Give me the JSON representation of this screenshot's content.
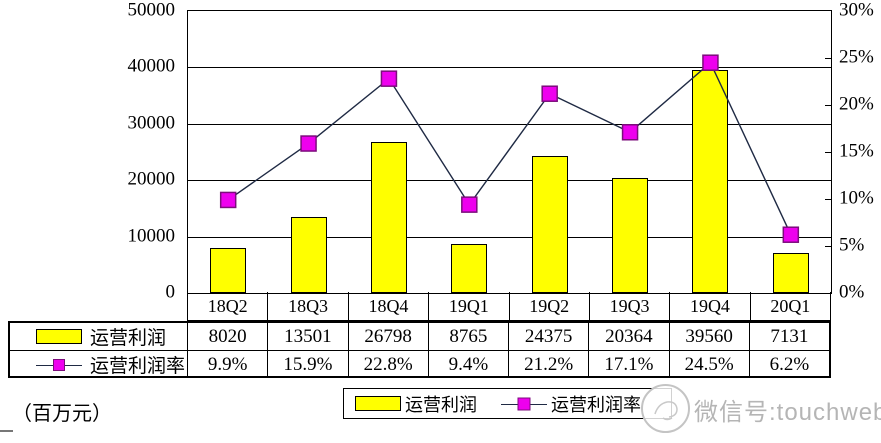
{
  "chart_data": {
    "type": "bar+line",
    "title": "",
    "categories": [
      "18Q2",
      "18Q3",
      "18Q4",
      "19Q1",
      "19Q2",
      "19Q3",
      "19Q4",
      "20Q1"
    ],
    "series": [
      {
        "name": "运营利润",
        "type": "bar",
        "axis": "left",
        "values": [
          8020,
          13501,
          26798,
          8765,
          24375,
          20364,
          39560,
          7131
        ]
      },
      {
        "name": "运营利润率",
        "type": "line",
        "axis": "right",
        "values_percent": [
          9.9,
          15.9,
          22.8,
          9.4,
          21.2,
          17.1,
          24.5,
          6.2
        ],
        "labels": [
          "9.9%",
          "15.9%",
          "22.8%",
          "9.4%",
          "21.2%",
          "17.1%",
          "24.5%",
          "6.2%"
        ]
      }
    ],
    "left_axis": {
      "min": 0,
      "max": 50000,
      "tick_step": 10000,
      "tick_labels": [
        "0",
        "10000",
        "20000",
        "30000",
        "40000",
        "50000"
      ]
    },
    "right_axis": {
      "min": 0,
      "max": 30,
      "tick_step": 5,
      "tick_labels": [
        "0%",
        "5%",
        "10%",
        "15%",
        "20%",
        "25%",
        "30%"
      ]
    },
    "grid": true,
    "legend_position": "bottom"
  },
  "unit_label": "（百万元）",
  "watermark": {
    "text": "微信号:touchweb"
  },
  "colors": {
    "bar_fill": "#FFFF00",
    "bar_border": "#000000",
    "line": "#1f2a44",
    "marker_fill": "#EE00EE",
    "marker_border": "#7c0d7c",
    "grid": "#000000",
    "watermark_gray": "#b5b5b5"
  }
}
